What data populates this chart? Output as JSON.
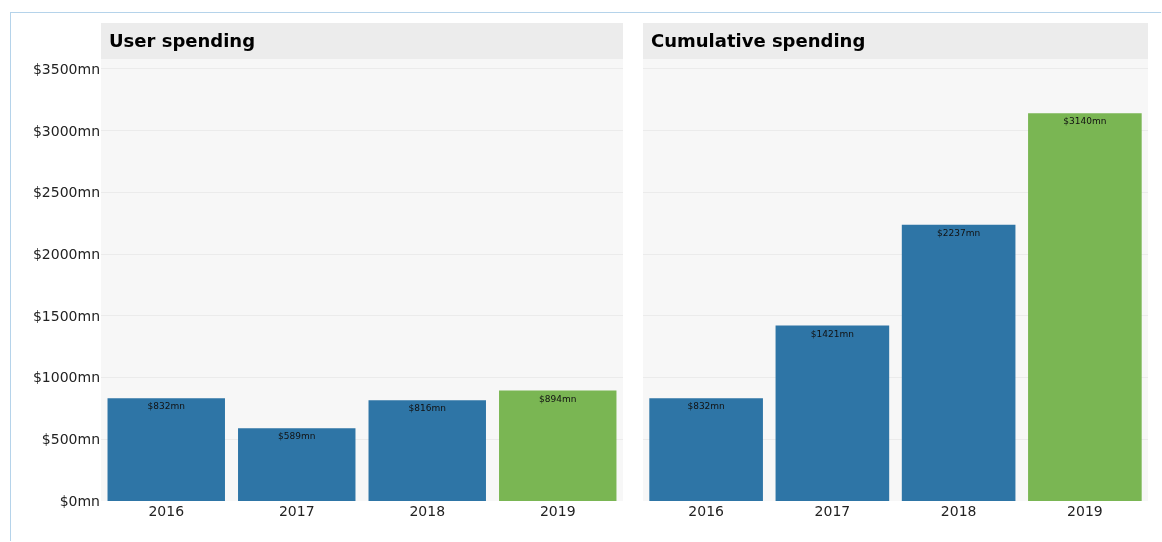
{
  "chart_data": [
    {
      "type": "bar",
      "title": "User spending",
      "categories": [
        "2016",
        "2017",
        "2018",
        "2019"
      ],
      "values": [
        832,
        589,
        816,
        894
      ],
      "colors": [
        "#2e75a6",
        "#2e75a6",
        "#2e75a6",
        "#7ab653"
      ],
      "value_labels": [
        "$832mn",
        "$589mn",
        "$816mn",
        "$894mn"
      ],
      "ylim": [
        0,
        3580
      ],
      "yticks": [
        {
          "value": 0,
          "label": "$0mn"
        },
        {
          "value": 500,
          "label": "$500mn"
        },
        {
          "value": 1000,
          "label": "$1000mn"
        },
        {
          "value": 1500,
          "label": "$1500mn"
        },
        {
          "value": 2000,
          "label": "$2000mn"
        },
        {
          "value": 2500,
          "label": "$2500mn"
        },
        {
          "value": 3000,
          "label": "$3000mn"
        },
        {
          "value": 3500,
          "label": "$3500mn"
        }
      ],
      "grid": "y"
    },
    {
      "type": "bar",
      "title": "Cumulative spending",
      "categories": [
        "2016",
        "2017",
        "2018",
        "2019"
      ],
      "values": [
        832,
        1421,
        2237,
        3140
      ],
      "colors": [
        "#2e75a6",
        "#2e75a6",
        "#2e75a6",
        "#7ab653"
      ],
      "value_labels": [
        "$832mn",
        "$1421mn",
        "$2237mn",
        "$3140mn"
      ],
      "ylim": [
        0,
        3580
      ],
      "yticks": [
        {
          "value": 0,
          "label": null
        },
        {
          "value": 500,
          "label": null
        },
        {
          "value": 1000,
          "label": null
        },
        {
          "value": 1500,
          "label": null
        },
        {
          "value": 2000,
          "label": null
        },
        {
          "value": 2500,
          "label": null
        },
        {
          "value": 3000,
          "label": null
        },
        {
          "value": 3500,
          "label": null
        }
      ],
      "grid": "y",
      "tick_labels": "x"
    }
  ]
}
